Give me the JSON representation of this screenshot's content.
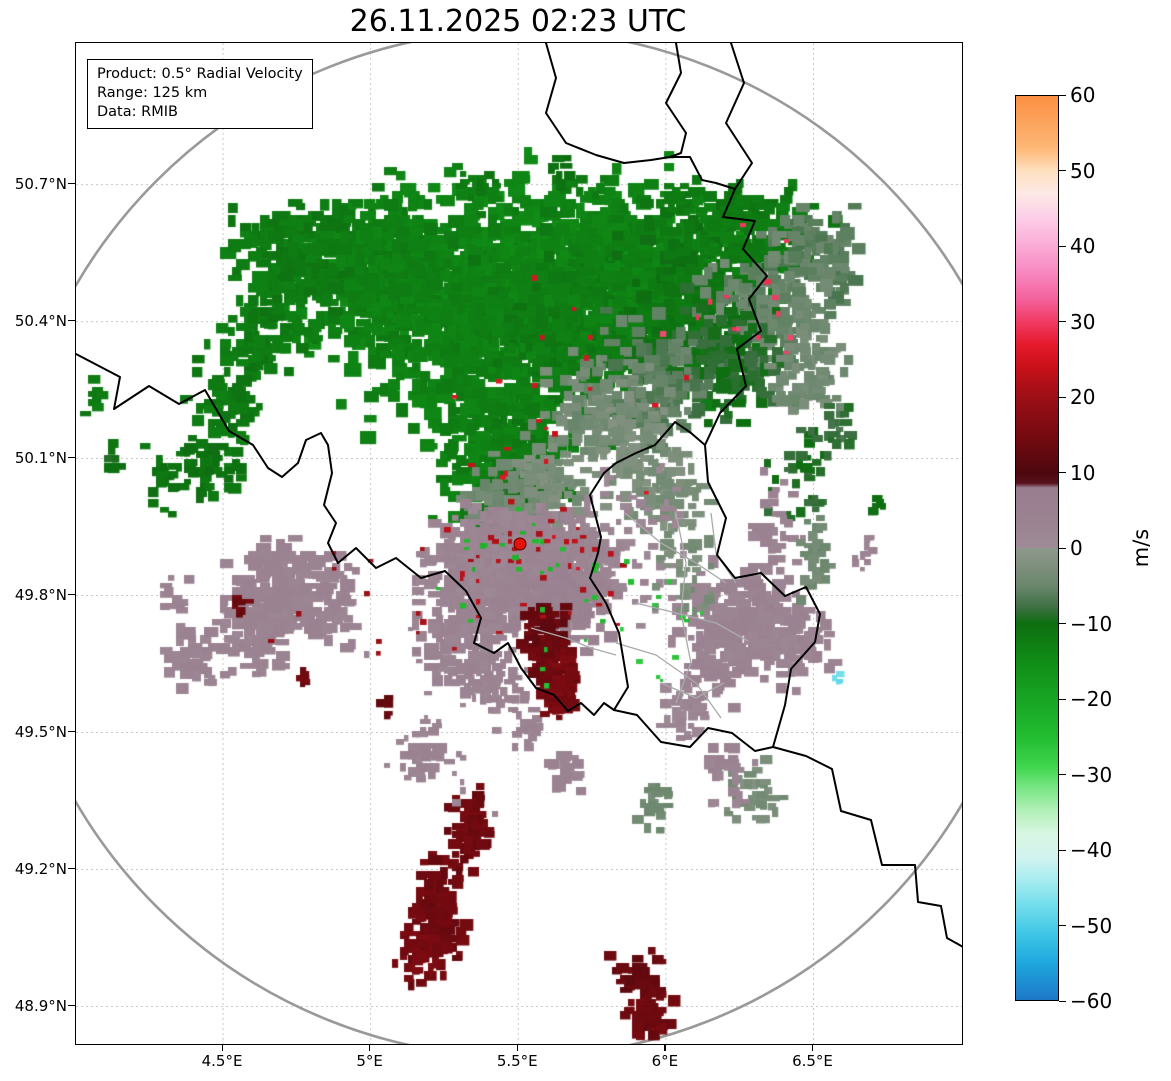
{
  "title": "26.11.2025 02:23 UTC",
  "info_box": {
    "product": "Product: 0.5° Radial Velocity",
    "range": "Range: 125 km",
    "data": "Data: RMIB"
  },
  "axes": {
    "lat_ticks": [
      {
        "label": "50.7°N",
        "value": 50.7
      },
      {
        "label": "50.4°N",
        "value": 50.4
      },
      {
        "label": "50.1°N",
        "value": 50.1
      },
      {
        "label": "49.8°N",
        "value": 49.8
      },
      {
        "label": "49.5°N",
        "value": 49.5
      },
      {
        "label": "49.2°N",
        "value": 49.2
      },
      {
        "label": "48.9°N",
        "value": 48.9
      }
    ],
    "lon_ticks": [
      {
        "label": "4.5°E",
        "value": 4.5
      },
      {
        "label": "5°E",
        "value": 5.0
      },
      {
        "label": "5.5°E",
        "value": 5.5
      },
      {
        "label": "6°E",
        "value": 6.0
      },
      {
        "label": "6.5°E",
        "value": 6.5
      }
    ]
  },
  "colorbar": {
    "label": "m/s",
    "min": -60,
    "max": 60,
    "ticks": [
      {
        "label": "60",
        "value": 60
      },
      {
        "label": "50",
        "value": 50
      },
      {
        "label": "40",
        "value": 40
      },
      {
        "label": "30",
        "value": 30
      },
      {
        "label": "20",
        "value": 20
      },
      {
        "label": "10",
        "value": 10
      },
      {
        "label": "0",
        "value": 0
      },
      {
        "label": "−10",
        "value": -10
      },
      {
        "label": "−20",
        "value": -20
      },
      {
        "label": "−30",
        "value": -30
      },
      {
        "label": "−40",
        "value": -40
      },
      {
        "label": "−50",
        "value": -50
      },
      {
        "label": "−60",
        "value": -60
      }
    ],
    "stops": [
      {
        "v": -60,
        "c": "#1d78c8"
      },
      {
        "v": -55,
        "c": "#1fa8de"
      },
      {
        "v": -51,
        "c": "#41c8e6"
      },
      {
        "v": -47,
        "c": "#79dfec"
      },
      {
        "v": -44,
        "c": "#a8ecf0"
      },
      {
        "v": -41,
        "c": "#d2f4ef"
      },
      {
        "v": -38,
        "c": "#d9f6e2"
      },
      {
        "v": -35,
        "c": "#b4f0ba"
      },
      {
        "v": -32,
        "c": "#7ce688"
      },
      {
        "v": -29,
        "c": "#3fd54d"
      },
      {
        "v": -25,
        "c": "#22bc30"
      },
      {
        "v": -20,
        "c": "#18a424"
      },
      {
        "v": -15,
        "c": "#108c16"
      },
      {
        "v": -10,
        "c": "#0d6e10"
      },
      {
        "v": -8,
        "c": "#3b6f41"
      },
      {
        "v": -5,
        "c": "#6b876d"
      },
      {
        "v": -2,
        "c": "#829180"
      },
      {
        "v": -0.01,
        "c": "#8d998c"
      },
      {
        "v": 0.01,
        "c": "#9e8b97"
      },
      {
        "v": 3,
        "c": "#9b8392"
      },
      {
        "v": 8,
        "c": "#987d8e"
      },
      {
        "v": 8.6,
        "c": "#57101c"
      },
      {
        "v": 10,
        "c": "#4c080e"
      },
      {
        "v": 14,
        "c": "#6f0a10"
      },
      {
        "v": 20,
        "c": "#9c0f16"
      },
      {
        "v": 24,
        "c": "#c91019"
      },
      {
        "v": 27,
        "c": "#e51a2c"
      },
      {
        "v": 30,
        "c": "#f03a62"
      },
      {
        "v": 33,
        "c": "#f4619c"
      },
      {
        "v": 37,
        "c": "#f88cc4"
      },
      {
        "v": 41,
        "c": "#fbb4da"
      },
      {
        "v": 44,
        "c": "#fccfe8"
      },
      {
        "v": 47,
        "c": "#fde9e6"
      },
      {
        "v": 50,
        "c": "#fde0c0"
      },
      {
        "v": 53,
        "c": "#fdb877"
      },
      {
        "v": 60,
        "c": "#fb8f42"
      }
    ]
  },
  "colors": {
    "range_ring": "#999999",
    "country_border": "#000000",
    "district_border": "#aaaaaa",
    "grid": "#c9c9c9",
    "radar_marker_fill": "#e3120b",
    "radar_marker_edge": "#5a0000"
  },
  "chart_data": {
    "type": "heatmap",
    "title": "26.11.2025 02:23 UTC",
    "product": "0.5° Radial Velocity",
    "range_km": 125,
    "source": "RMIB",
    "units": "m/s",
    "value_range": [
      -60,
      60
    ],
    "radar_site": {
      "lon": 5.5044,
      "lat": 49.9135
    },
    "extent": {
      "lon_min": 4.002,
      "lon_max": 7.003,
      "lat_min": 48.818,
      "lat_max": 51.01
    },
    "grid_on": true,
    "blob_fields": [
      "lon",
      "lat",
      "sigma_lon",
      "sigma_lat",
      "velocity_ms",
      "count",
      "px_size"
    ],
    "blobs": [
      [
        5.55,
        50.5,
        0.28,
        0.1,
        -14,
        900,
        10
      ],
      [
        5.3,
        50.42,
        0.18,
        0.1,
        -13,
        420,
        10
      ],
      [
        5.75,
        50.38,
        0.15,
        0.09,
        -12,
        300,
        9
      ],
      [
        5.9,
        50.52,
        0.15,
        0.08,
        -13,
        300,
        9
      ],
      [
        6.1,
        50.45,
        0.12,
        0.1,
        -11,
        250,
        9
      ],
      [
        4.9,
        50.5,
        0.12,
        0.07,
        -13,
        220,
        9
      ],
      [
        4.72,
        50.55,
        0.1,
        0.06,
        -12,
        160,
        9
      ],
      [
        5.05,
        50.58,
        0.08,
        0.05,
        -13,
        120,
        9
      ],
      [
        4.62,
        50.38,
        0.07,
        0.05,
        -12,
        90,
        8
      ],
      [
        4.52,
        50.24,
        0.06,
        0.05,
        -12,
        70,
        8
      ],
      [
        4.45,
        50.1,
        0.05,
        0.04,
        -11,
        45,
        8
      ],
      [
        5.42,
        50.15,
        0.1,
        0.1,
        -13,
        320,
        9
      ],
      [
        5.5,
        50.02,
        0.07,
        0.07,
        -12,
        180,
        8
      ],
      [
        5.51,
        49.95,
        0.05,
        0.04,
        -10,
        80,
        7
      ],
      [
        6.3,
        50.6,
        0.1,
        0.05,
        -12,
        150,
        9
      ],
      [
        6.5,
        50.55,
        0.08,
        0.05,
        -6,
        100,
        9
      ],
      [
        6.35,
        50.42,
        0.1,
        0.07,
        -5,
        170,
        9
      ],
      [
        6.2,
        50.32,
        0.08,
        0.06,
        -9,
        120,
        9
      ],
      [
        6.48,
        50.3,
        0.06,
        0.05,
        -4,
        80,
        8
      ],
      [
        5.95,
        50.28,
        0.08,
        0.06,
        -6,
        120,
        9
      ],
      [
        5.75,
        50.22,
        0.08,
        0.05,
        -4,
        110,
        8
      ],
      [
        5.88,
        50.12,
        0.06,
        0.06,
        -3,
        90,
        8
      ],
      [
        6.02,
        50.02,
        0.05,
        0.05,
        -3,
        70,
        8
      ],
      [
        4.3,
        50.05,
        0.04,
        0.04,
        -11,
        25,
        7
      ],
      [
        4.12,
        50.1,
        0.02,
        0.02,
        -10,
        10,
        7
      ],
      [
        4.06,
        50.23,
        0.015,
        0.02,
        -12,
        8,
        7
      ],
      [
        5.45,
        50.0,
        0.08,
        0.05,
        -4,
        120,
        8
      ],
      [
        5.6,
        50.05,
        0.06,
        0.05,
        -3,
        80,
        8
      ],
      [
        5.37,
        50.7,
        0.03,
        0.02,
        -12,
        20,
        7
      ],
      [
        5.62,
        50.73,
        0.025,
        0.02,
        -11,
        12,
        7
      ],
      [
        6.05,
        50.68,
        0.03,
        0.02,
        -12,
        15,
        7
      ],
      [
        6.58,
        50.18,
        0.03,
        0.03,
        -8,
        20,
        7
      ],
      [
        6.45,
        50.05,
        0.05,
        0.07,
        -9,
        35,
        7
      ],
      [
        5.5,
        49.86,
        0.12,
        0.06,
        3,
        360,
        9
      ],
      [
        5.35,
        49.8,
        0.08,
        0.05,
        3,
        160,
        8
      ],
      [
        5.65,
        49.8,
        0.08,
        0.05,
        4,
        160,
        8
      ],
      [
        5.52,
        49.92,
        0.1,
        0.03,
        2,
        120,
        7
      ],
      [
        5.3,
        49.9,
        0.06,
        0.04,
        2,
        90,
        8
      ],
      [
        5.72,
        49.9,
        0.05,
        0.04,
        2,
        70,
        8
      ],
      [
        4.7,
        49.82,
        0.08,
        0.05,
        3,
        150,
        9
      ],
      [
        4.6,
        49.73,
        0.06,
        0.05,
        3,
        100,
        8
      ],
      [
        4.85,
        49.79,
        0.05,
        0.04,
        3,
        70,
        8
      ],
      [
        4.38,
        49.67,
        0.04,
        0.03,
        3,
        40,
        8
      ],
      [
        4.33,
        49.8,
        0.025,
        0.02,
        3,
        15,
        7
      ],
      [
        6.25,
        49.75,
        0.09,
        0.05,
        3,
        170,
        9
      ],
      [
        6.42,
        49.7,
        0.06,
        0.04,
        3,
        80,
        8
      ],
      [
        6.15,
        49.65,
        0.05,
        0.04,
        3,
        60,
        8
      ],
      [
        6.05,
        49.55,
        0.04,
        0.03,
        2,
        40,
        7
      ],
      [
        5.18,
        49.45,
        0.04,
        0.03,
        3,
        40,
        7
      ],
      [
        5.42,
        49.62,
        0.05,
        0.04,
        3,
        60,
        7
      ],
      [
        5.28,
        49.68,
        0.05,
        0.04,
        3,
        70,
        8
      ],
      [
        6.3,
        49.37,
        0.05,
        0.03,
        -3,
        40,
        7
      ],
      [
        6.2,
        49.42,
        0.04,
        0.03,
        3,
        35,
        7
      ],
      [
        5.95,
        49.35,
        0.03,
        0.03,
        -4,
        25,
        7
      ],
      [
        5.65,
        49.42,
        0.03,
        0.025,
        3,
        25,
        7
      ],
      [
        5.52,
        49.52,
        0.025,
        0.02,
        3,
        18,
        7
      ],
      [
        5.9,
        49.9,
        0.1,
        0.08,
        2,
        70,
        6
      ],
      [
        6.05,
        49.85,
        0.06,
        0.05,
        -3,
        40,
        6
      ],
      [
        6.35,
        49.95,
        0.05,
        0.05,
        3,
        40,
        7
      ],
      [
        6.5,
        49.88,
        0.04,
        0.04,
        -4,
        30,
        7
      ],
      [
        5.6,
        49.66,
        0.035,
        0.045,
        14,
        130,
        8
      ],
      [
        5.63,
        49.6,
        0.025,
        0.03,
        15,
        60,
        7
      ],
      [
        5.58,
        49.74,
        0.03,
        0.02,
        13,
        35,
        7
      ],
      [
        5.33,
        49.3,
        0.035,
        0.035,
        14,
        70,
        8
      ],
      [
        5.21,
        49.1,
        0.04,
        0.06,
        14,
        140,
        8
      ],
      [
        5.16,
        49.03,
        0.03,
        0.03,
        15,
        50,
        7
      ],
      [
        5.88,
        48.97,
        0.05,
        0.02,
        13,
        40,
        7
      ],
      [
        5.93,
        48.89,
        0.035,
        0.03,
        14,
        60,
        8
      ],
      [
        4.55,
        49.79,
        0.015,
        0.015,
        14,
        8,
        6
      ],
      [
        4.75,
        49.63,
        0.012,
        0.012,
        14,
        6,
        6
      ],
      [
        5.05,
        49.56,
        0.012,
        0.012,
        13,
        6,
        6
      ],
      [
        5.55,
        49.85,
        0.15,
        0.08,
        22,
        40,
        4
      ],
      [
        5.55,
        49.85,
        0.15,
        0.08,
        -24,
        30,
        4
      ],
      [
        5.6,
        50.15,
        0.25,
        0.15,
        25,
        25,
        4
      ],
      [
        6.2,
        50.4,
        0.15,
        0.1,
        30,
        15,
        4
      ],
      [
        6.58,
        49.62,
        0.01,
        0.008,
        -48,
        5,
        5
      ],
      [
        6.0,
        49.7,
        0.2,
        0.1,
        -26,
        15,
        4
      ],
      [
        5.0,
        49.8,
        0.15,
        0.08,
        20,
        12,
        4
      ],
      [
        5.3,
        49.55,
        0.15,
        0.1,
        2,
        30,
        5
      ],
      [
        6.68,
        49.9,
        0.02,
        0.02,
        3,
        12,
        6
      ],
      [
        6.72,
        50.0,
        0.015,
        0.015,
        -10,
        8,
        6
      ]
    ]
  }
}
